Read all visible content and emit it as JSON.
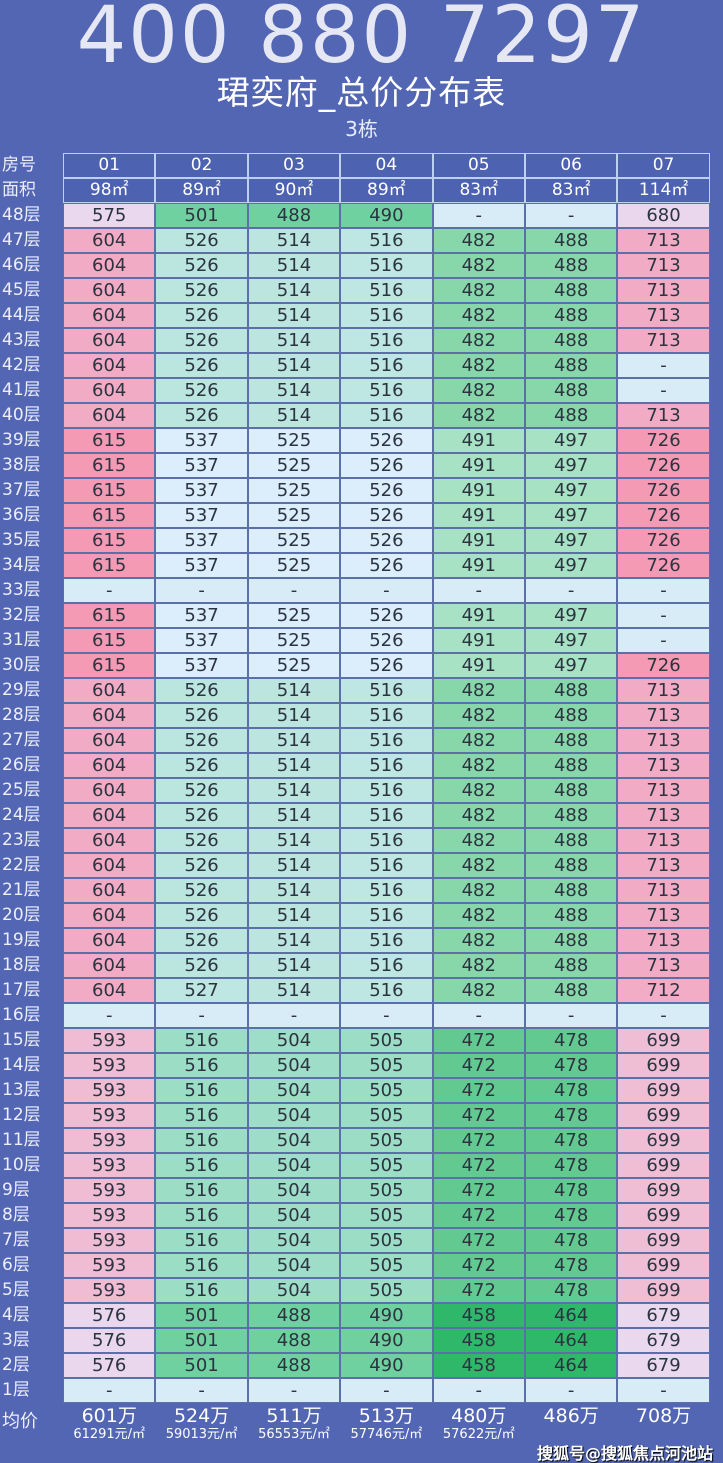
{
  "title": "珺奕府_总价分布表",
  "subtitle": "3栋",
  "labels": {
    "unit": "房号",
    "area": "面积",
    "avg": "均价"
  },
  "units": [
    "01",
    "02",
    "03",
    "04",
    "05",
    "06",
    "07"
  ],
  "areas": [
    "98㎡",
    "89㎡",
    "90㎡",
    "89㎡",
    "83㎡",
    "83㎡",
    "114㎡"
  ],
  "rows": [
    {
      "floor": "48层",
      "v": [
        "575",
        "501",
        "488",
        "490",
        "-",
        "-",
        "680"
      ]
    },
    {
      "floor": "47层",
      "v": [
        "604",
        "526",
        "514",
        "516",
        "482",
        "488",
        "713"
      ]
    },
    {
      "floor": "46层",
      "v": [
        "604",
        "526",
        "514",
        "516",
        "482",
        "488",
        "713"
      ]
    },
    {
      "floor": "45层",
      "v": [
        "604",
        "526",
        "514",
        "516",
        "482",
        "488",
        "713"
      ]
    },
    {
      "floor": "44层",
      "v": [
        "604",
        "526",
        "514",
        "516",
        "482",
        "488",
        "713"
      ]
    },
    {
      "floor": "43层",
      "v": [
        "604",
        "526",
        "514",
        "516",
        "482",
        "488",
        "713"
      ]
    },
    {
      "floor": "42层",
      "v": [
        "604",
        "526",
        "514",
        "516",
        "482",
        "488",
        "-"
      ]
    },
    {
      "floor": "41层",
      "v": [
        "604",
        "526",
        "514",
        "516",
        "482",
        "488",
        "-"
      ]
    },
    {
      "floor": "40层",
      "v": [
        "604",
        "526",
        "514",
        "516",
        "482",
        "488",
        "713"
      ]
    },
    {
      "floor": "39层",
      "v": [
        "615",
        "537",
        "525",
        "526",
        "491",
        "497",
        "726"
      ]
    },
    {
      "floor": "38层",
      "v": [
        "615",
        "537",
        "525",
        "526",
        "491",
        "497",
        "726"
      ]
    },
    {
      "floor": "37层",
      "v": [
        "615",
        "537",
        "525",
        "526",
        "491",
        "497",
        "726"
      ]
    },
    {
      "floor": "36层",
      "v": [
        "615",
        "537",
        "525",
        "526",
        "491",
        "497",
        "726"
      ]
    },
    {
      "floor": "35层",
      "v": [
        "615",
        "537",
        "525",
        "526",
        "491",
        "497",
        "726"
      ]
    },
    {
      "floor": "34层",
      "v": [
        "615",
        "537",
        "525",
        "526",
        "491",
        "497",
        "726"
      ]
    },
    {
      "floor": "33层",
      "v": [
        "-",
        "-",
        "-",
        "-",
        "-",
        "-",
        "-"
      ]
    },
    {
      "floor": "32层",
      "v": [
        "615",
        "537",
        "525",
        "526",
        "491",
        "497",
        "-"
      ]
    },
    {
      "floor": "31层",
      "v": [
        "615",
        "537",
        "525",
        "526",
        "491",
        "497",
        "-"
      ]
    },
    {
      "floor": "30层",
      "v": [
        "615",
        "537",
        "525",
        "526",
        "491",
        "497",
        "726"
      ]
    },
    {
      "floor": "29层",
      "v": [
        "604",
        "526",
        "514",
        "516",
        "482",
        "488",
        "713"
      ]
    },
    {
      "floor": "28层",
      "v": [
        "604",
        "526",
        "514",
        "516",
        "482",
        "488",
        "713"
      ]
    },
    {
      "floor": "27层",
      "v": [
        "604",
        "526",
        "514",
        "516",
        "482",
        "488",
        "713"
      ]
    },
    {
      "floor": "26层",
      "v": [
        "604",
        "526",
        "514",
        "516",
        "482",
        "488",
        "713"
      ]
    },
    {
      "floor": "25层",
      "v": [
        "604",
        "526",
        "514",
        "516",
        "482",
        "488",
        "713"
      ]
    },
    {
      "floor": "24层",
      "v": [
        "604",
        "526",
        "514",
        "516",
        "482",
        "488",
        "713"
      ]
    },
    {
      "floor": "23层",
      "v": [
        "604",
        "526",
        "514",
        "516",
        "482",
        "488",
        "713"
      ]
    },
    {
      "floor": "22层",
      "v": [
        "604",
        "526",
        "514",
        "516",
        "482",
        "488",
        "713"
      ]
    },
    {
      "floor": "21层",
      "v": [
        "604",
        "526",
        "514",
        "516",
        "482",
        "488",
        "713"
      ]
    },
    {
      "floor": "20层",
      "v": [
        "604",
        "526",
        "514",
        "516",
        "482",
        "488",
        "713"
      ]
    },
    {
      "floor": "19层",
      "v": [
        "604",
        "526",
        "514",
        "516",
        "482",
        "488",
        "713"
      ]
    },
    {
      "floor": "18层",
      "v": [
        "604",
        "526",
        "514",
        "516",
        "482",
        "488",
        "713"
      ]
    },
    {
      "floor": "17层",
      "v": [
        "604",
        "527",
        "514",
        "516",
        "482",
        "488",
        "712"
      ]
    },
    {
      "floor": "16层",
      "v": [
        "-",
        "-",
        "-",
        "-",
        "-",
        "-",
        "-"
      ]
    },
    {
      "floor": "15层",
      "v": [
        "593",
        "516",
        "504",
        "505",
        "472",
        "478",
        "699"
      ]
    },
    {
      "floor": "14层",
      "v": [
        "593",
        "516",
        "504",
        "505",
        "472",
        "478",
        "699"
      ]
    },
    {
      "floor": "13层",
      "v": [
        "593",
        "516",
        "504",
        "505",
        "472",
        "478",
        "699"
      ]
    },
    {
      "floor": "12层",
      "v": [
        "593",
        "516",
        "504",
        "505",
        "472",
        "478",
        "699"
      ]
    },
    {
      "floor": "11层",
      "v": [
        "593",
        "516",
        "504",
        "505",
        "472",
        "478",
        "699"
      ]
    },
    {
      "floor": "10层",
      "v": [
        "593",
        "516",
        "504",
        "505",
        "472",
        "478",
        "699"
      ]
    },
    {
      "floor": "9层",
      "v": [
        "593",
        "516",
        "504",
        "505",
        "472",
        "478",
        "699"
      ]
    },
    {
      "floor": "8层",
      "v": [
        "593",
        "516",
        "504",
        "505",
        "472",
        "478",
        "699"
      ]
    },
    {
      "floor": "7层",
      "v": [
        "593",
        "516",
        "504",
        "505",
        "472",
        "478",
        "699"
      ]
    },
    {
      "floor": "6层",
      "v": [
        "593",
        "516",
        "504",
        "505",
        "472",
        "478",
        "699"
      ]
    },
    {
      "floor": "5层",
      "v": [
        "593",
        "516",
        "504",
        "505",
        "472",
        "478",
        "699"
      ]
    },
    {
      "floor": "4层",
      "v": [
        "576",
        "501",
        "488",
        "490",
        "458",
        "464",
        "679"
      ]
    },
    {
      "floor": "3层",
      "v": [
        "576",
        "501",
        "488",
        "490",
        "458",
        "464",
        "679"
      ]
    },
    {
      "floor": "2层",
      "v": [
        "576",
        "501",
        "488",
        "490",
        "458",
        "464",
        "679"
      ]
    },
    {
      "floor": "1层",
      "v": [
        "-",
        "-",
        "-",
        "-",
        "-",
        "-",
        "-"
      ]
    }
  ],
  "averages": [
    {
      "total": "601万",
      "unit": "61291元/㎡"
    },
    {
      "total": "524万",
      "unit": "59013元/㎡"
    },
    {
      "total": "511万",
      "unit": "56553元/㎡"
    },
    {
      "total": "513万",
      "unit": "57746元/㎡"
    },
    {
      "total": "480万",
      "unit": "57622元/㎡"
    },
    {
      "total": "486万",
      "unit": ""
    },
    {
      "total": "708万",
      "unit": ""
    }
  ],
  "watermark": "400 880 7297",
  "source_credit": "搜狐号@搜狐焦点河池站",
  "colors": {
    "background": "#5266b3",
    "empty": "#d8ecf8",
    "pink": "#f59ab4",
    "green": "#2fb86a",
    "light": "#dceefb",
    "lavender": "#ead8ee"
  }
}
